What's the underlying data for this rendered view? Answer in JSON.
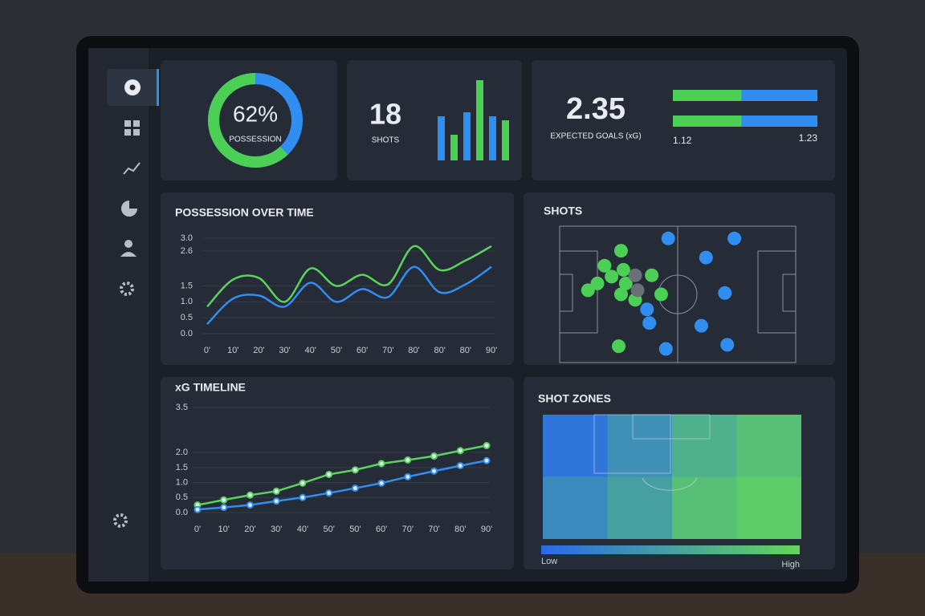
{
  "chart_data": [
    {
      "type": "donut",
      "value": 62,
      "value_label": "62%",
      "label": "POSSESSION",
      "color": "#4ccf55",
      "track_color": "#2f8ef0"
    },
    {
      "type": "kpi-bars",
      "value": 18,
      "label": "SHOTS",
      "values": [
        55,
        32,
        60,
        100,
        55,
        50
      ],
      "colors": [
        "#2f8ef0",
        "#4ccf55",
        "#2f8ef0",
        "#4ccf55",
        "#2f8ef0",
        "#4ccf55"
      ]
    },
    {
      "type": "kpi-split",
      "value": 2.35,
      "label": "EXPECTED GOALS (xG)",
      "values": [
        1.12,
        1.23
      ],
      "colors": [
        "#4ccf55",
        "#2f8ef0"
      ]
    },
    {
      "type": "line",
      "title": "POSSESSION OVER TIME",
      "categories": [
        "0'",
        "10'",
        "20'",
        "30'",
        "40'",
        "50'",
        "60'",
        "70'",
        "80'",
        "80'",
        "80'",
        "90'"
      ],
      "series": [
        {
          "color": "#5ad35e",
          "values": [
            0.85,
            1.7,
            1.75,
            1.0,
            2.05,
            1.5,
            1.85,
            1.55,
            2.75,
            2.0,
            2.3,
            2.75
          ]
        },
        {
          "color": "#2f8ef0",
          "values": [
            0.3,
            1.1,
            1.2,
            0.85,
            1.6,
            1.0,
            1.4,
            1.15,
            2.1,
            1.3,
            1.55,
            2.1
          ]
        }
      ],
      "ylim": [
        0,
        3
      ],
      "yticks": [
        {
          "value": 0,
          "label": "0.0"
        },
        0.5,
        {
          "value": 1,
          "label": "1.0"
        },
        1.5,
        2.6,
        {
          "value": 3,
          "label": "3.0"
        }
      ],
      "grid": true,
      "smooth": true
    },
    {
      "type": "line",
      "title": "xG TIMELINE",
      "categories": [
        "0'",
        "10'",
        "20'",
        "30'",
        "40'",
        "50'",
        "50'",
        "60'",
        "70'",
        "70'",
        "80'",
        "90'"
      ],
      "series": [
        {
          "color": "#5ad35e",
          "values": [
            0.25,
            0.42,
            0.58,
            0.71,
            0.98,
            1.27,
            1.42,
            1.63,
            1.75,
            1.88,
            2.06,
            2.23
          ]
        },
        {
          "color": "#2f8ef0",
          "values": [
            0.1,
            0.17,
            0.25,
            0.38,
            0.5,
            0.65,
            0.81,
            0.98,
            1.19,
            1.38,
            1.56,
            1.73
          ]
        }
      ],
      "ylim": [
        0,
        3.5
      ],
      "yticks": [
        {
          "value": 0,
          "label": "0.0"
        },
        0.5,
        {
          "value": 1,
          "label": "1.0"
        },
        1.5,
        {
          "value": 2,
          "label": "2.0"
        },
        3.5
      ],
      "grid": true,
      "markers": true
    },
    {
      "type": "scatter",
      "title": "SHOTS",
      "xlim": [
        0,
        100
      ],
      "ylim": [
        0,
        100
      ],
      "series": [
        {
          "color": "#4ccf55",
          "x": [
            26,
            19,
            27,
            16,
            22,
            28,
            39,
            26,
            32,
            43,
            25,
            12
          ],
          "y": [
            82,
            71,
            68,
            58,
            63,
            58,
            64,
            50,
            46,
            50,
            12,
            53
          ]
        },
        {
          "color": "#6b7078",
          "x": [
            32,
            33
          ],
          "y": [
            64,
            53
          ]
        },
        {
          "color": "#2f8ef0",
          "x": [
            46,
            74,
            62,
            70,
            37,
            38,
            60,
            45,
            71
          ],
          "y": [
            91,
            91,
            77,
            51,
            39,
            29,
            27,
            10,
            13
          ]
        }
      ]
    },
    {
      "type": "heatmap",
      "title": "SHOT ZONES",
      "values": [
        [
          0.1,
          0.35,
          0.65,
          0.8
        ],
        [
          0.3,
          0.5,
          0.8,
          0.9
        ]
      ],
      "colors": [
        "#2a6ae8",
        "#62d65a"
      ],
      "legend": [
        "Low",
        "High"
      ]
    }
  ]
}
